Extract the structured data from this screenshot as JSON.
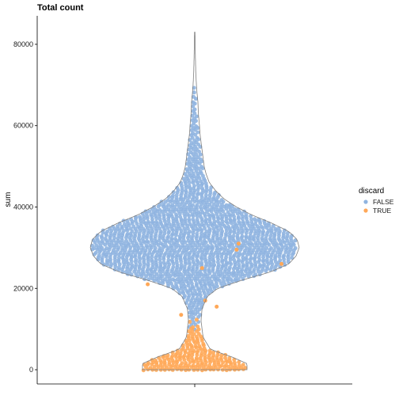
{
  "chart_data": {
    "type": "violin-beeswarm",
    "title": "Total count",
    "xlabel": "",
    "ylabel": "sum",
    "ylim": [
      -3500,
      87000
    ],
    "yticks": [
      0,
      20000,
      40000,
      60000,
      80000
    ],
    "ytick_labels": [
      "0",
      "20000",
      "40000",
      "60000",
      "80000"
    ],
    "grid": false,
    "legend": {
      "title": "discard",
      "position": "right",
      "entries": [
        {
          "label": "FALSE",
          "color": "#8fb4e0"
        },
        {
          "label": "TRUE",
          "color": "#ffa858"
        }
      ]
    },
    "series": [
      {
        "name": "FALSE",
        "color": "#8fb4e0",
        "min": 9000,
        "max": 83000
      },
      {
        "name": "TRUE",
        "color": "#ffa858",
        "min": 0,
        "max": 14000
      }
    ],
    "violin_profile": {
      "sum_values": [
        0,
        1500,
        3000,
        5000,
        8000,
        12000,
        15000,
        18000,
        20000,
        22000,
        24000,
        26000,
        28000,
        30000,
        32000,
        34000,
        36000,
        38000,
        40000,
        42000,
        44000,
        46000,
        48000,
        50000,
        52000,
        55000,
        58000,
        60000,
        63000,
        66000,
        68000,
        70000,
        73000,
        76000,
        80000,
        83000
      ],
      "relative_density": [
        0.5,
        0.5,
        0.37,
        0.15,
        0.08,
        0.06,
        0.07,
        0.12,
        0.22,
        0.45,
        0.72,
        0.9,
        0.97,
        1.0,
        0.98,
        0.9,
        0.74,
        0.55,
        0.4,
        0.28,
        0.2,
        0.14,
        0.11,
        0.09,
        0.08,
        0.065,
        0.05,
        0.045,
        0.035,
        0.03,
        0.022,
        0.016,
        0.01,
        0.007,
        0.004,
        0.002
      ]
    },
    "outlier_points_true": [
      {
        "x_offset": 0.42,
        "y": 31000
      },
      {
        "x_offset": 0.4,
        "y": 29500
      },
      {
        "x_offset": 0.83,
        "y": 26000
      },
      {
        "x_offset": 0.07,
        "y": 25000
      },
      {
        "x_offset": -0.45,
        "y": 21000
      },
      {
        "x_offset": 0.1,
        "y": 17000
      },
      {
        "x_offset": 0.21,
        "y": 15500
      },
      {
        "x_offset": -0.13,
        "y": 13500
      }
    ]
  }
}
